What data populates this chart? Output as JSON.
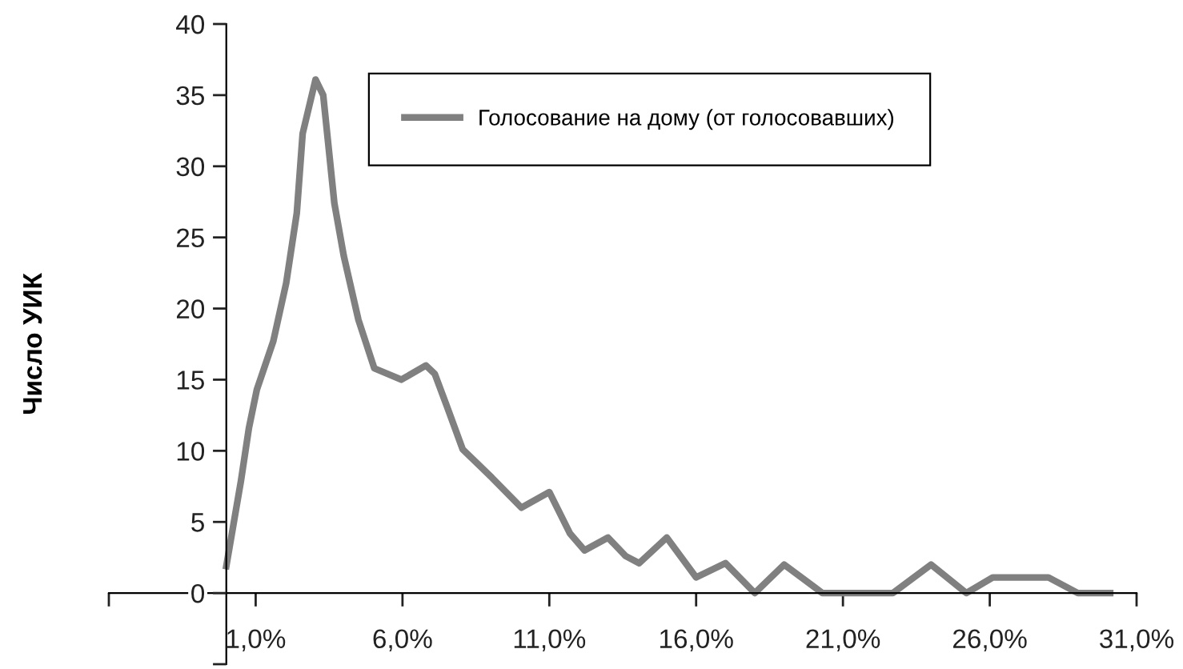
{
  "chart_data": {
    "type": "line",
    "ylabel": "Число УИК",
    "x": [
      0,
      0.5,
      0.77,
      1.04,
      1.6,
      2.04,
      2.4,
      2.6,
      3.04,
      3.3,
      3.68,
      4.0,
      4.5,
      5.04,
      5.96,
      6.8,
      7.1,
      7.5,
      8.05,
      9.05,
      10.05,
      11,
      11.7,
      12.2,
      13,
      13.6,
      14.06,
      15,
      16,
      17,
      18,
      19,
      20.3,
      22.2,
      22.7,
      24,
      25.2,
      26.1,
      28,
      29,
      30.1
    ],
    "series": [
      {
        "name": "Голосование на дому (от голосовавших)",
        "color": "#808080",
        "values": [
          1.9,
          7.9,
          11.6,
          14.3,
          17.7,
          21.8,
          26.7,
          32.3,
          36.1,
          35,
          27.4,
          23.7,
          19.2,
          15.8,
          15,
          16,
          15.4,
          13.2,
          10.1,
          8.1,
          6,
          7.1,
          4.2,
          3,
          3.9,
          2.6,
          2.1,
          3.9,
          1.1,
          2.1,
          0,
          2,
          0,
          0,
          0,
          2,
          0,
          1.1,
          1.1,
          0,
          0
        ]
      }
    ],
    "xlim": [
      -4,
      31
    ],
    "xticks": [
      {
        "value": -4,
        "label": null
      },
      {
        "value": 1,
        "label": "1,0%"
      },
      {
        "value": 6,
        "label": "6,0%"
      },
      {
        "value": 11,
        "label": "11,0%"
      },
      {
        "value": 16,
        "label": "16,0%"
      },
      {
        "value": 21,
        "label": "21,0%"
      },
      {
        "value": 26,
        "label": "26,0%"
      },
      {
        "value": 31,
        "label": "31,0%"
      }
    ],
    "ylim": [
      -5,
      40
    ],
    "yticks": [
      {
        "value": -5,
        "label": null
      },
      0,
      5,
      10,
      15,
      20,
      25,
      30,
      35,
      40
    ],
    "grid": false,
    "legend": "top right",
    "marker": "none",
    "line_style": "solid"
  }
}
